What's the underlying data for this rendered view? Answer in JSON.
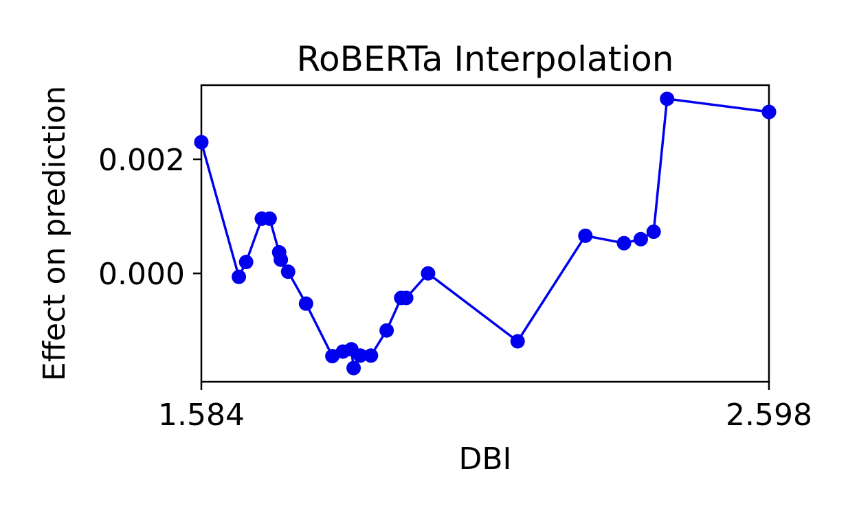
{
  "chart_data": {
    "type": "line",
    "title": "RoBERTa Interpolation",
    "xlabel": "DBI",
    "ylabel": "Effect on prediction",
    "xlim": [
      1.584,
      2.598
    ],
    "ylim": [
      -0.0019,
      0.0033
    ],
    "x_ticks": [
      1.584,
      2.598
    ],
    "x_tick_labels": [
      "1.584",
      "2.598"
    ],
    "y_ticks": [
      0.002,
      0.0
    ],
    "y_tick_labels": [
      "0.002",
      "0.000"
    ],
    "grid": false,
    "color": "#0000ee",
    "series": [
      {
        "x": [
          1.584,
          1.651,
          1.664,
          1.692,
          1.706,
          1.723,
          1.726,
          1.739,
          1.771,
          1.818,
          1.837,
          1.852,
          1.856,
          1.868,
          1.887,
          1.915,
          1.941,
          1.95,
          1.989,
          2.149,
          2.27,
          2.339,
          2.369,
          2.392,
          2.416,
          2.598,
          2.598
        ],
        "y": [
          0.0023,
          -6e-05,
          0.0002,
          0.00096,
          0.00096,
          0.00037,
          0.00024,
          3e-05,
          -0.00053,
          -0.00145,
          -0.00137,
          -0.00133,
          -0.00166,
          -0.00144,
          -0.00144,
          -0.001,
          -0.00043,
          -0.00043,
          0.0,
          -0.00119,
          0.00066,
          0.00053,
          0.0006,
          0.00073,
          0.00306,
          0.00283,
          0.00283
        ]
      }
    ]
  }
}
